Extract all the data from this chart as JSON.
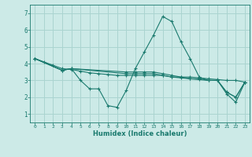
{
  "xlabel": "Humidex (Indice chaleur)",
  "bg_color": "#cceae7",
  "grid_color": "#aad4d0",
  "line_color": "#1a7a6e",
  "xlim": [
    -0.5,
    23.5
  ],
  "ylim": [
    0.5,
    7.5
  ],
  "xticks": [
    0,
    1,
    2,
    3,
    4,
    5,
    6,
    7,
    8,
    9,
    10,
    11,
    12,
    13,
    14,
    15,
    16,
    17,
    18,
    19,
    20,
    21,
    22,
    23
  ],
  "yticks": [
    1,
    2,
    3,
    4,
    5,
    6,
    7
  ],
  "series": [
    {
      "x": [
        0,
        1,
        2,
        3,
        4,
        5,
        6,
        7,
        8,
        9,
        10,
        11,
        12,
        13,
        14,
        15,
        16,
        17,
        18,
        19,
        20,
        21,
        22,
        23
      ],
      "y": [
        4.3,
        4.1,
        3.9,
        3.7,
        3.65,
        3.55,
        3.45,
        3.4,
        3.35,
        3.3,
        3.3,
        3.3,
        3.3,
        3.3,
        3.3,
        3.2,
        3.2,
        3.2,
        3.15,
        3.1,
        3.05,
        3.0,
        3.0,
        2.9
      ]
    },
    {
      "x": [
        0,
        3,
        4,
        5,
        6,
        7,
        8,
        9,
        10,
        11,
        12,
        13,
        14,
        15,
        16,
        17,
        18,
        19,
        20,
        21,
        22,
        23
      ],
      "y": [
        4.3,
        3.6,
        3.7,
        3.0,
        2.5,
        2.5,
        1.5,
        1.4,
        2.4,
        3.7,
        4.7,
        5.7,
        6.8,
        6.5,
        5.3,
        4.3,
        3.2,
        3.0,
        3.0,
        2.3,
        2.0,
        2.9
      ]
    },
    {
      "x": [
        0,
        3,
        4,
        10,
        11,
        12,
        13,
        14,
        15,
        16,
        17,
        18,
        19,
        20,
        21,
        22,
        23
      ],
      "y": [
        4.3,
        3.6,
        3.7,
        3.4,
        3.4,
        3.4,
        3.4,
        3.3,
        3.2,
        3.15,
        3.1,
        3.05,
        3.0,
        3.0,
        2.2,
        1.7,
        2.9
      ]
    },
    {
      "x": [
        0,
        3,
        4,
        10,
        11,
        12,
        13,
        14,
        15,
        16,
        17,
        18,
        19,
        20,
        21,
        22,
        23
      ],
      "y": [
        4.3,
        3.6,
        3.7,
        3.5,
        3.5,
        3.5,
        3.5,
        3.4,
        3.3,
        3.2,
        3.1,
        3.1,
        3.0,
        3.0,
        2.3,
        2.0,
        2.9
      ]
    }
  ]
}
